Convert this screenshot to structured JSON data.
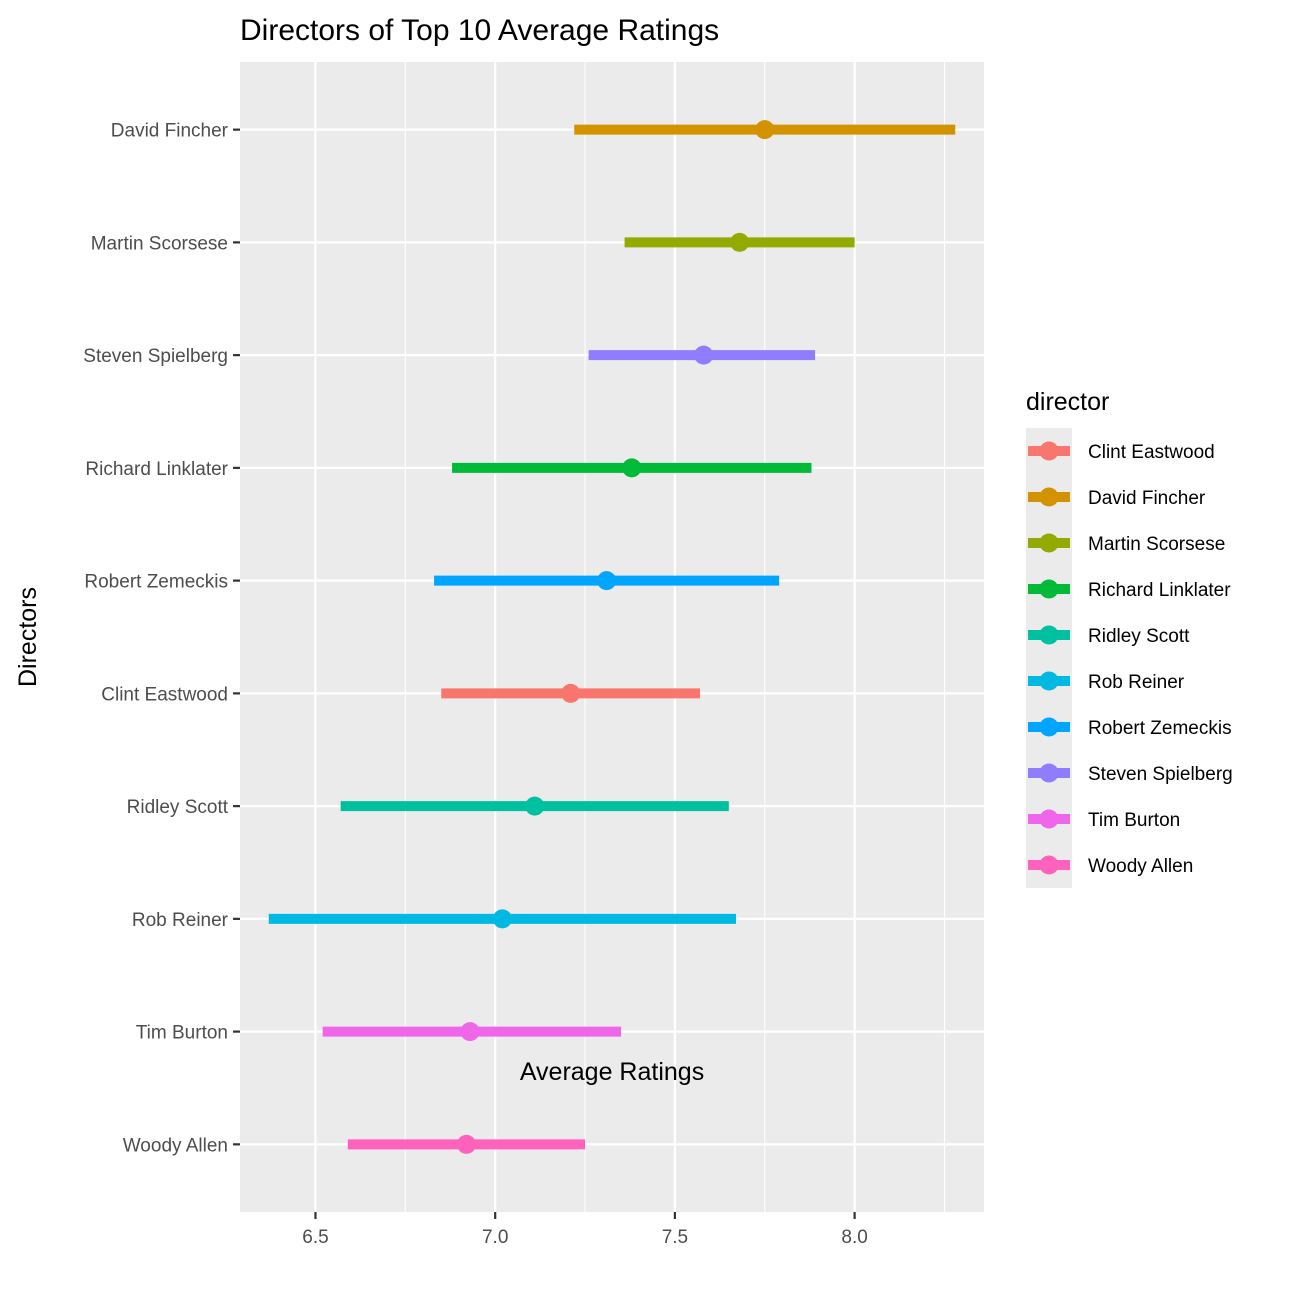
{
  "chart_data": {
    "type": "errorbar",
    "title": "Directors of Top 10 Average Ratings",
    "xlabel": "Average Ratings",
    "ylabel": "Directors",
    "xlim": [
      6.29,
      8.36
    ],
    "x_ticks": [
      6.5,
      7.0,
      7.5,
      8.0
    ],
    "x_tick_labels": [
      "6.5",
      "7.0",
      "7.5",
      "8.0"
    ],
    "grid": true,
    "legend_title": "director",
    "legend_position": "right",
    "categories": [
      "David Fincher",
      "Martin Scorsese",
      "Steven Spielberg",
      "Richard Linklater",
      "Robert Zemeckis",
      "Clint Eastwood",
      "Ridley Scott",
      "Rob Reiner",
      "Tim Burton",
      "Woody Allen"
    ],
    "series": [
      {
        "name": "Clint Eastwood",
        "mean": 7.21,
        "low": 6.85,
        "high": 7.57,
        "color": "#F8766D"
      },
      {
        "name": "David Fincher",
        "mean": 7.75,
        "low": 7.22,
        "high": 8.28,
        "color": "#D39200"
      },
      {
        "name": "Martin Scorsese",
        "mean": 7.68,
        "low": 7.36,
        "high": 8.0,
        "color": "#93AA00"
      },
      {
        "name": "Richard Linklater",
        "mean": 7.38,
        "low": 6.88,
        "high": 7.88,
        "color": "#00BA38"
      },
      {
        "name": "Ridley Scott",
        "mean": 7.11,
        "low": 6.57,
        "high": 7.65,
        "color": "#00C19F"
      },
      {
        "name": "Rob Reiner",
        "mean": 7.02,
        "low": 6.37,
        "high": 7.67,
        "color": "#00B9E3"
      },
      {
        "name": "Robert Zemeckis",
        "mean": 7.31,
        "low": 6.83,
        "high": 7.79,
        "color": "#00A5FF"
      },
      {
        "name": "Steven Spielberg",
        "mean": 7.58,
        "low": 7.26,
        "high": 7.89,
        "color": "#8F7CFF"
      },
      {
        "name": "Tim Burton",
        "mean": 6.93,
        "low": 6.52,
        "high": 7.35,
        "color": "#F066EA"
      },
      {
        "name": "Woody Allen",
        "mean": 6.92,
        "low": 6.59,
        "high": 7.25,
        "color": "#FF62BC"
      }
    ]
  }
}
